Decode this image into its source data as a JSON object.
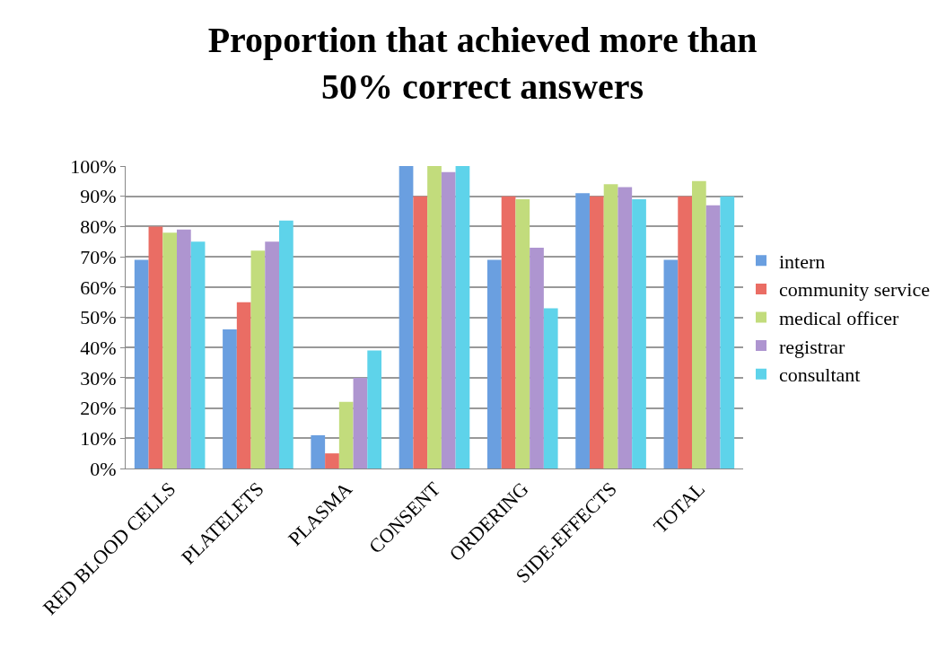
{
  "chart_data": {
    "type": "bar",
    "title": "Proportion that achieved more than 50% correct answers",
    "categories": [
      "RED BLOOD CELLS",
      "PLATELETS",
      "PLASMA",
      "CONSENT",
      "ORDERING",
      "SIDE-EFFECTS",
      "TOTAL"
    ],
    "series": [
      {
        "name": "intern",
        "color": "#6a9fe0",
        "values": [
          69,
          46,
          11,
          100,
          69,
          91,
          69
        ]
      },
      {
        "name": "community service",
        "color": "#ea6d64",
        "values": [
          80,
          55,
          5,
          90,
          90,
          90,
          90
        ]
      },
      {
        "name": "medical officer",
        "color": "#c2dc7c",
        "values": [
          78,
          72,
          22,
          100,
          89,
          94,
          95
        ]
      },
      {
        "name": "registrar",
        "color": "#ae95d0",
        "values": [
          79,
          75,
          30,
          98,
          73,
          93,
          87
        ]
      },
      {
        "name": "consultant",
        "color": "#5ed3ea",
        "values": [
          75,
          82,
          39,
          100,
          53,
          89,
          90
        ]
      }
    ],
    "ylim": [
      0,
      100
    ],
    "yticks": [
      {
        "value": 0,
        "label": "0%"
      },
      {
        "value": 10,
        "label": "10%"
      },
      {
        "value": 20,
        "label": "20%"
      },
      {
        "value": 30,
        "label": "30%"
      },
      {
        "value": 40,
        "label": "40%"
      },
      {
        "value": 50,
        "label": "50%"
      },
      {
        "value": 60,
        "label": "60%"
      },
      {
        "value": 70,
        "label": "70%"
      },
      {
        "value": 80,
        "label": "80%"
      },
      {
        "value": 90,
        "label": "90%"
      },
      {
        "value": 100,
        "label": "100%"
      }
    ],
    "grid": "y",
    "legend": "right"
  }
}
